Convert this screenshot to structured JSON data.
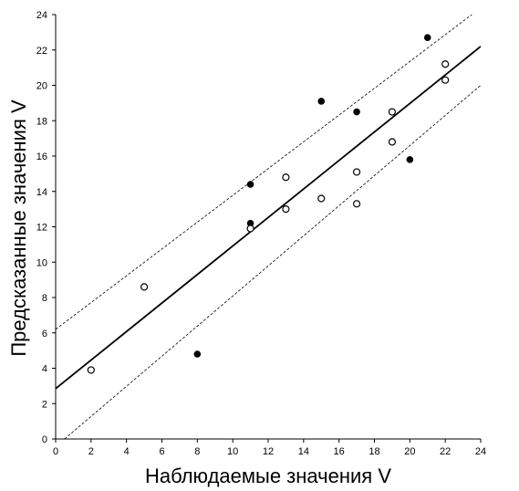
{
  "chart_data": {
    "type": "scatter",
    "title": "",
    "xlabel": "Наблюдаемые значения V",
    "ylabel": "Предсказанные значения V",
    "xlim": [
      0,
      24
    ],
    "ylim": [
      0,
      24
    ],
    "xticks": [
      "0",
      "2",
      "4",
      "6",
      "8",
      "10",
      "12",
      "14",
      "16",
      "18",
      "20",
      "22",
      "24"
    ],
    "yticks": [
      "0",
      "2",
      "4",
      "6",
      "8",
      "10",
      "12",
      "14",
      "16",
      "18",
      "20",
      "22",
      "24"
    ],
    "grid": false,
    "series": [
      {
        "marker": "filled-circle",
        "points": [
          {
            "x": 8,
            "y": 4.8
          },
          {
            "x": 11,
            "y": 14.4
          },
          {
            "x": 11,
            "y": 12.2
          },
          {
            "x": 15,
            "y": 19.1
          },
          {
            "x": 17,
            "y": 18.5
          },
          {
            "x": 20,
            "y": 15.8
          },
          {
            "x": 21,
            "y": 22.7
          }
        ]
      },
      {
        "marker": "open-circle",
        "points": [
          {
            "x": 2,
            "y": 3.9
          },
          {
            "x": 5,
            "y": 8.6
          },
          {
            "x": 11,
            "y": 11.9
          },
          {
            "x": 13,
            "y": 14.8
          },
          {
            "x": 13,
            "y": 13.0
          },
          {
            "x": 15,
            "y": 13.6
          },
          {
            "x": 17,
            "y": 15.1
          },
          {
            "x": 17,
            "y": 13.3
          },
          {
            "x": 19,
            "y": 18.5
          },
          {
            "x": 19,
            "y": 16.8
          },
          {
            "x": 22,
            "y": 21.2
          },
          {
            "x": 22,
            "y": 20.3
          }
        ]
      }
    ],
    "regression_line": {
      "x": [
        0,
        24
      ],
      "y": [
        2.85,
        22.2
      ]
    },
    "confidence_upper": {
      "x": [
        0,
        23.5
      ],
      "y": [
        6.2,
        24
      ]
    },
    "confidence_lower": {
      "x": [
        0.5,
        24
      ],
      "y": [
        0,
        20.0
      ]
    }
  }
}
